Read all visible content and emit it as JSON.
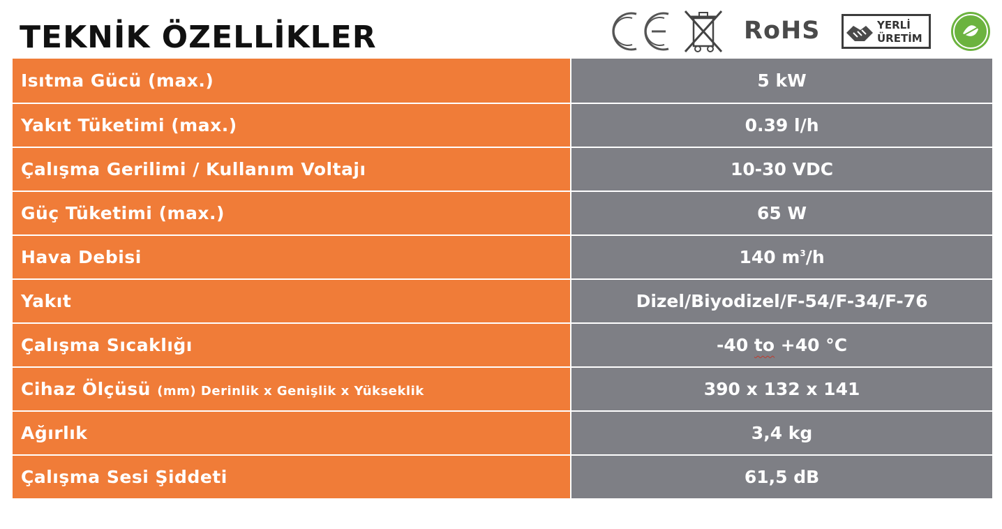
{
  "title": "TEKNİK ÖZELLİKLER",
  "badges": {
    "rohs": "RoHS",
    "yerli_line1": "YERLİ",
    "yerli_line2": "ÜRETİM"
  },
  "specs": [
    {
      "label": "Isıtma Gücü (max.)",
      "value": "5 kW"
    },
    {
      "label": "Yakıt Tüketimi (max.)",
      "value": "0.39 l/h"
    },
    {
      "label": "Çalışma Gerilimi / Kullanım Voltajı",
      "value": "10-30 VDC"
    },
    {
      "label": "Güç Tüketimi (max.)",
      "value": "65 W"
    },
    {
      "label": "Hava Debisi",
      "value": "140 m",
      "value_sup": "3",
      "value_suffix": "/h"
    },
    {
      "label": "Yakıt",
      "value": "Dizel/Biyodizel/F-54/F-34/F-76"
    },
    {
      "label": "Çalışma Sıcaklığı",
      "value_pre": "-40 ",
      "value_mid": "to",
      "value_post": " +40 °C"
    },
    {
      "label": "Cihaz Ölçüsü",
      "label_sub": "(mm) Derinlik x Genişlik x Yükseklik",
      "value": "390 x 132 x 141"
    },
    {
      "label": "Ağırlık",
      "value": "3,4 kg"
    },
    {
      "label": "Çalışma Sesi Şiddeti",
      "value": "61,5 dB"
    }
  ]
}
